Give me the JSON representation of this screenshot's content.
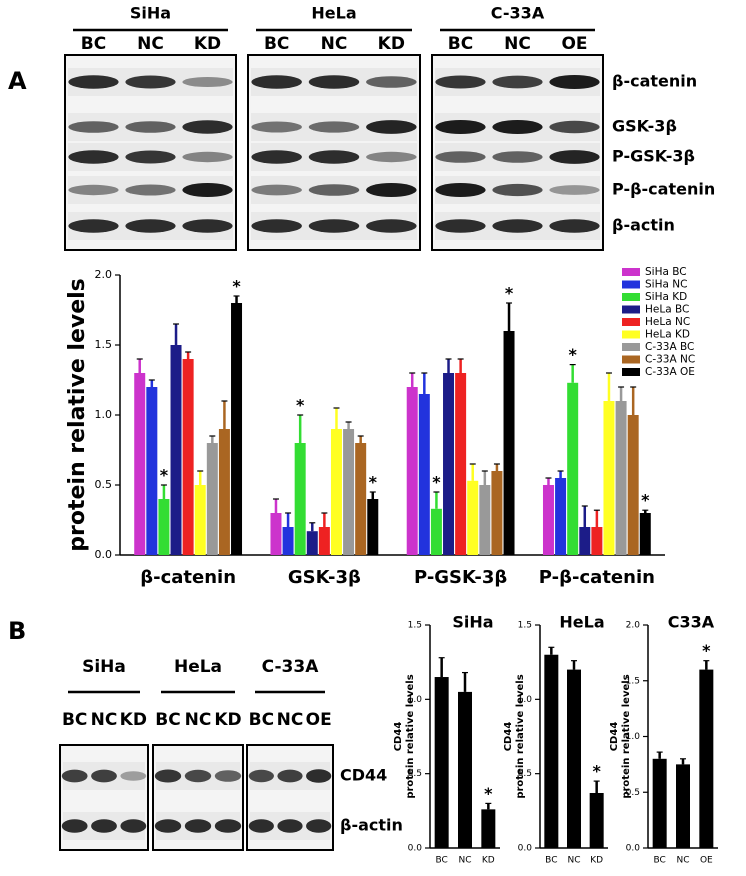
{
  "panel_labels": [
    "A",
    "B"
  ],
  "blot_a": {
    "groups": [
      {
        "name": "SiHa",
        "lanes": [
          "BC",
          "NC",
          "KD"
        ]
      },
      {
        "name": "HeLa",
        "lanes": [
          "BC",
          "NC",
          "KD"
        ]
      },
      {
        "name": "C-33A",
        "lanes": [
          "BC",
          "NC",
          "OE"
        ]
      }
    ],
    "rows": [
      "β-catenin",
      "GSK-3β",
      "P-GSK-3β",
      "P-β-catenin",
      "β-actin"
    ]
  },
  "blot_b": {
    "groups": [
      {
        "name": "SiHa",
        "lanes": [
          "BC",
          "NC",
          "KD"
        ]
      },
      {
        "name": "HeLa",
        "lanes": [
          "BC",
          "NC",
          "KD"
        ]
      },
      {
        "name": "C-33A",
        "lanes": [
          "BC",
          "NC",
          "OE"
        ]
      }
    ],
    "rows": [
      "CD44",
      "β-actin"
    ]
  },
  "chart_data": [
    {
      "type": "bar",
      "ylabel": [
        "protein relative levels"
      ],
      "categories": [
        "β-catenin",
        "GSK-3β",
        "P-GSK-3β",
        "P-β-catenin"
      ],
      "ylim": [
        0,
        2.0
      ],
      "yticks": [
        {
          "value": 0,
          "label": "0.0"
        },
        {
          "value": 0.5,
          "label": "0.5"
        },
        {
          "value": 1.0,
          "label": "1.0"
        },
        {
          "value": 1.5,
          "label": "1.5"
        },
        {
          "value": 2.0,
          "label": "2.0"
        }
      ],
      "legend": "upper right",
      "series": [
        {
          "name": "SiHa BC",
          "color": "#cc33cc",
          "values": [
            1.3,
            0.3,
            1.2,
            0.5
          ],
          "errors": [
            0.1,
            0.1,
            0.1,
            0.05
          ]
        },
        {
          "name": "SiHa NC",
          "color": "#2233dd",
          "values": [
            1.2,
            0.2,
            1.15,
            0.55
          ],
          "errors": [
            0.05,
            0.1,
            0.15,
            0.05
          ]
        },
        {
          "name": "SiHa KD",
          "color": "#33dd33",
          "values": [
            0.4,
            0.8,
            0.33,
            1.23
          ],
          "errors": [
            0.1,
            0.2,
            0.12,
            0.13
          ],
          "annotations": [
            "*",
            "*",
            "*",
            "*"
          ]
        },
        {
          "name": "HeLa BC",
          "color": "#1c1c88",
          "values": [
            1.5,
            0.17,
            1.3,
            0.2
          ],
          "errors": [
            0.15,
            0.06,
            0.1,
            0.15
          ]
        },
        {
          "name": "HeLa NC",
          "color": "#ee2222",
          "values": [
            1.4,
            0.2,
            1.3,
            0.2
          ],
          "errors": [
            0.05,
            0.1,
            0.1,
            0.12
          ]
        },
        {
          "name": "HeLa KD",
          "color": "#ffff22",
          "values": [
            0.5,
            0.9,
            0.53,
            1.1
          ],
          "errors": [
            0.1,
            0.15,
            0.12,
            0.2
          ]
        },
        {
          "name": "C-33A BC",
          "color": "#999999",
          "values": [
            0.8,
            0.9,
            0.5,
            1.1
          ],
          "errors": [
            0.05,
            0.05,
            0.1,
            0.1
          ]
        },
        {
          "name": "C-33A NC",
          "color": "#aa6622",
          "values": [
            0.9,
            0.8,
            0.6,
            1.0
          ],
          "errors": [
            0.2,
            0.05,
            0.05,
            0.2
          ]
        },
        {
          "name": "C-33A OE",
          "color": "#000000",
          "values": [
            1.8,
            0.4,
            1.6,
            0.3
          ],
          "errors": [
            0.05,
            0.05,
            0.2,
            0.02
          ],
          "annotations": [
            "*",
            "*",
            "*",
            "*"
          ]
        }
      ]
    },
    {
      "type": "bar",
      "title": "SiHa",
      "ylabel": [
        "CD44",
        "protein relative levels"
      ],
      "categories": [
        "BC",
        "NC",
        "KD"
      ],
      "ylim": [
        0,
        1.5
      ],
      "yticks": [
        {
          "value": 0,
          "label": "0.0"
        },
        {
          "value": 0.5,
          "label": "0.5"
        },
        {
          "value": 1.0,
          "label": "1.0"
        },
        {
          "value": 1.5,
          "label": "1.5"
        }
      ],
      "series": [
        {
          "color": "#000000",
          "values": [
            1.15,
            1.05,
            0.26
          ],
          "errors": [
            0.13,
            0.13,
            0.04
          ],
          "annotations": [
            null,
            null,
            "*"
          ]
        }
      ]
    },
    {
      "type": "bar",
      "title": "HeLa",
      "ylabel": [
        "CD44",
        "protein relative levels"
      ],
      "categories": [
        "BC",
        "NC",
        "KD"
      ],
      "ylim": [
        0,
        1.5
      ],
      "yticks": [
        {
          "value": 0,
          "label": "0.0"
        },
        {
          "value": 0.5,
          "label": "0.5"
        },
        {
          "value": 1.0,
          "label": "1.0"
        },
        {
          "value": 1.5,
          "label": "1.5"
        }
      ],
      "series": [
        {
          "color": "#000000",
          "values": [
            1.3,
            1.2,
            0.37
          ],
          "errors": [
            0.05,
            0.06,
            0.08
          ],
          "annotations": [
            null,
            null,
            "*"
          ]
        }
      ]
    },
    {
      "type": "bar",
      "title": "C33A",
      "ylabel": [
        "CD44",
        "protein relative levels"
      ],
      "categories": [
        "BC",
        "NC",
        "OE"
      ],
      "ylim": [
        0,
        2.0
      ],
      "yticks": [
        {
          "value": 0,
          "label": "0.0"
        },
        {
          "value": 0.5,
          "label": "0.5"
        },
        {
          "value": 1.0,
          "label": "1.0"
        },
        {
          "value": 1.5,
          "label": "1.5"
        },
        {
          "value": 2.0,
          "label": "2.0"
        }
      ],
      "series": [
        {
          "color": "#000000",
          "values": [
            0.8,
            0.75,
            1.6
          ],
          "errors": [
            0.06,
            0.05,
            0.08
          ],
          "annotations": [
            null,
            null,
            "*"
          ]
        }
      ]
    }
  ]
}
